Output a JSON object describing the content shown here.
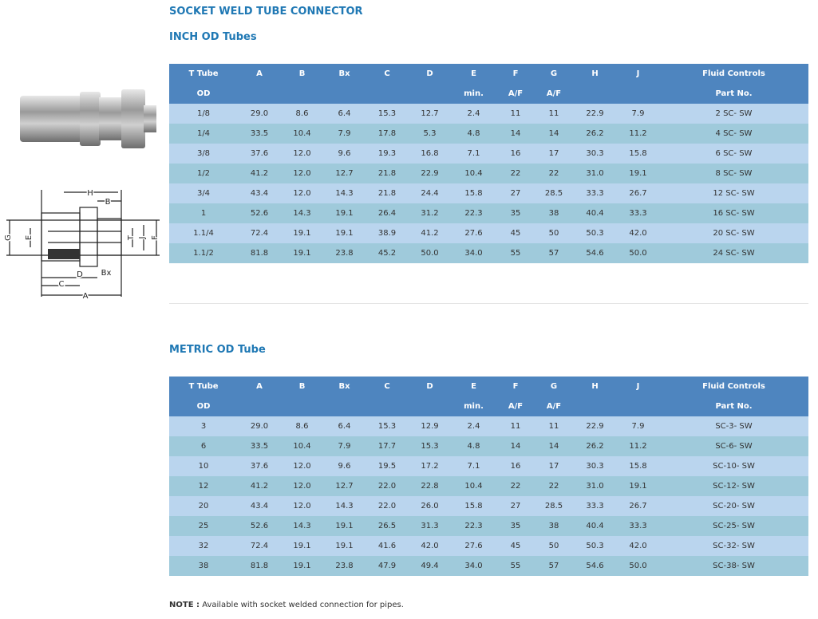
{
  "header": {
    "title": "SOCKET WELD TUBE CONNECTOR"
  },
  "diagram": {
    "labels": [
      "H",
      "B",
      "G",
      "E",
      "T",
      "J",
      "F",
      "D",
      "C",
      "Bx",
      "A"
    ]
  },
  "tables": [
    {
      "title": "INCH OD Tubes",
      "columns": [
        {
          "label": "T Tube",
          "sub": "OD"
        },
        {
          "label": "A"
        },
        {
          "label": "B"
        },
        {
          "label": "Bx"
        },
        {
          "label": "C"
        },
        {
          "label": "D"
        },
        {
          "label": "E",
          "sub": "min."
        },
        {
          "label": "F",
          "sub": "A/F"
        },
        {
          "label": "G",
          "sub": "A/F"
        },
        {
          "label": "H"
        },
        {
          "label": "J"
        },
        {
          "label": "Fluid Controls",
          "sub": "Part No."
        }
      ],
      "rows": [
        [
          "1/8",
          "29.0",
          "8.6",
          "6.4",
          "15.3",
          "12.7",
          "2.4",
          "11",
          "11",
          "22.9",
          "7.9",
          "2 SC- SW"
        ],
        [
          "1/4",
          "33.5",
          "10.4",
          "7.9",
          "17.8",
          "5.3",
          "4.8",
          "14",
          "14",
          "26.2",
          "11.2",
          "4 SC- SW"
        ],
        [
          "3/8",
          "37.6",
          "12.0",
          "9.6",
          "19.3",
          "16.8",
          "7.1",
          "16",
          "17",
          "30.3",
          "15.8",
          "6 SC- SW"
        ],
        [
          "1/2",
          "41.2",
          "12.0",
          "12.7",
          "21.8",
          "22.9",
          "10.4",
          "22",
          "22",
          "31.0",
          "19.1",
          "8 SC- SW"
        ],
        [
          "3/4",
          "43.4",
          "12.0",
          "14.3",
          "21.8",
          "24.4",
          "15.8",
          "27",
          "28.5",
          "33.3",
          "26.7",
          "12 SC- SW"
        ],
        [
          "1",
          "52.6",
          "14.3",
          "19.1",
          "26.4",
          "31.2",
          "22.3",
          "35",
          "38",
          "40.4",
          "33.3",
          "16 SC- SW"
        ],
        [
          "1.1/4",
          "72.4",
          "19.1",
          "19.1",
          "38.9",
          "41.2",
          "27.6",
          "45",
          "50",
          "50.3",
          "42.0",
          "20 SC- SW"
        ],
        [
          "1.1/2",
          "81.8",
          "19.1",
          "23.8",
          "45.2",
          "50.0",
          "34.0",
          "55",
          "57",
          "54.6",
          "50.0",
          "24 SC- SW"
        ]
      ]
    },
    {
      "title": "METRIC OD Tube",
      "columns": [
        {
          "label": "T Tube",
          "sub": "OD"
        },
        {
          "label": "A"
        },
        {
          "label": "B"
        },
        {
          "label": "Bx"
        },
        {
          "label": "C"
        },
        {
          "label": "D"
        },
        {
          "label": "E",
          "sub": "min."
        },
        {
          "label": "F",
          "sub": "A/F"
        },
        {
          "label": "G",
          "sub": "A/F"
        },
        {
          "label": "H"
        },
        {
          "label": "J"
        },
        {
          "label": "Fluid Controls",
          "sub": "Part No."
        }
      ],
      "rows": [
        [
          "3",
          "29.0",
          "8.6",
          "6.4",
          "15.3",
          "12.9",
          "2.4",
          "11",
          "11",
          "22.9",
          "7.9",
          "SC-3- SW"
        ],
        [
          "6",
          "33.5",
          "10.4",
          "7.9",
          "17.7",
          "15.3",
          "4.8",
          "14",
          "14",
          "26.2",
          "11.2",
          "SC-6- SW"
        ],
        [
          "10",
          "37.6",
          "12.0",
          "9.6",
          "19.5",
          "17.2",
          "7.1",
          "16",
          "17",
          "30.3",
          "15.8",
          "SC-10- SW"
        ],
        [
          "12",
          "41.2",
          "12.0",
          "12.7",
          "22.0",
          "22.8",
          "10.4",
          "22",
          "22",
          "31.0",
          "19.1",
          "SC-12- SW"
        ],
        [
          "20",
          "43.4",
          "12.0",
          "14.3",
          "22.0",
          "26.0",
          "15.8",
          "27",
          "28.5",
          "33.3",
          "26.7",
          "SC-20- SW"
        ],
        [
          "25",
          "52.6",
          "14.3",
          "19.1",
          "26.5",
          "31.3",
          "22.3",
          "35",
          "38",
          "40.4",
          "33.3",
          "SC-25- SW"
        ],
        [
          "32",
          "72.4",
          "19.1",
          "19.1",
          "41.6",
          "42.0",
          "27.6",
          "45",
          "50",
          "50.3",
          "42.0",
          "SC-32- SW"
        ],
        [
          "38",
          "81.8",
          "19.1",
          "23.8",
          "47.9",
          "49.4",
          "34.0",
          "55",
          "57",
          "54.6",
          "50.0",
          "SC-38- SW"
        ]
      ]
    }
  ],
  "note": {
    "label": "NOTE :",
    "text": "Available with socket welded connection for pipes."
  }
}
